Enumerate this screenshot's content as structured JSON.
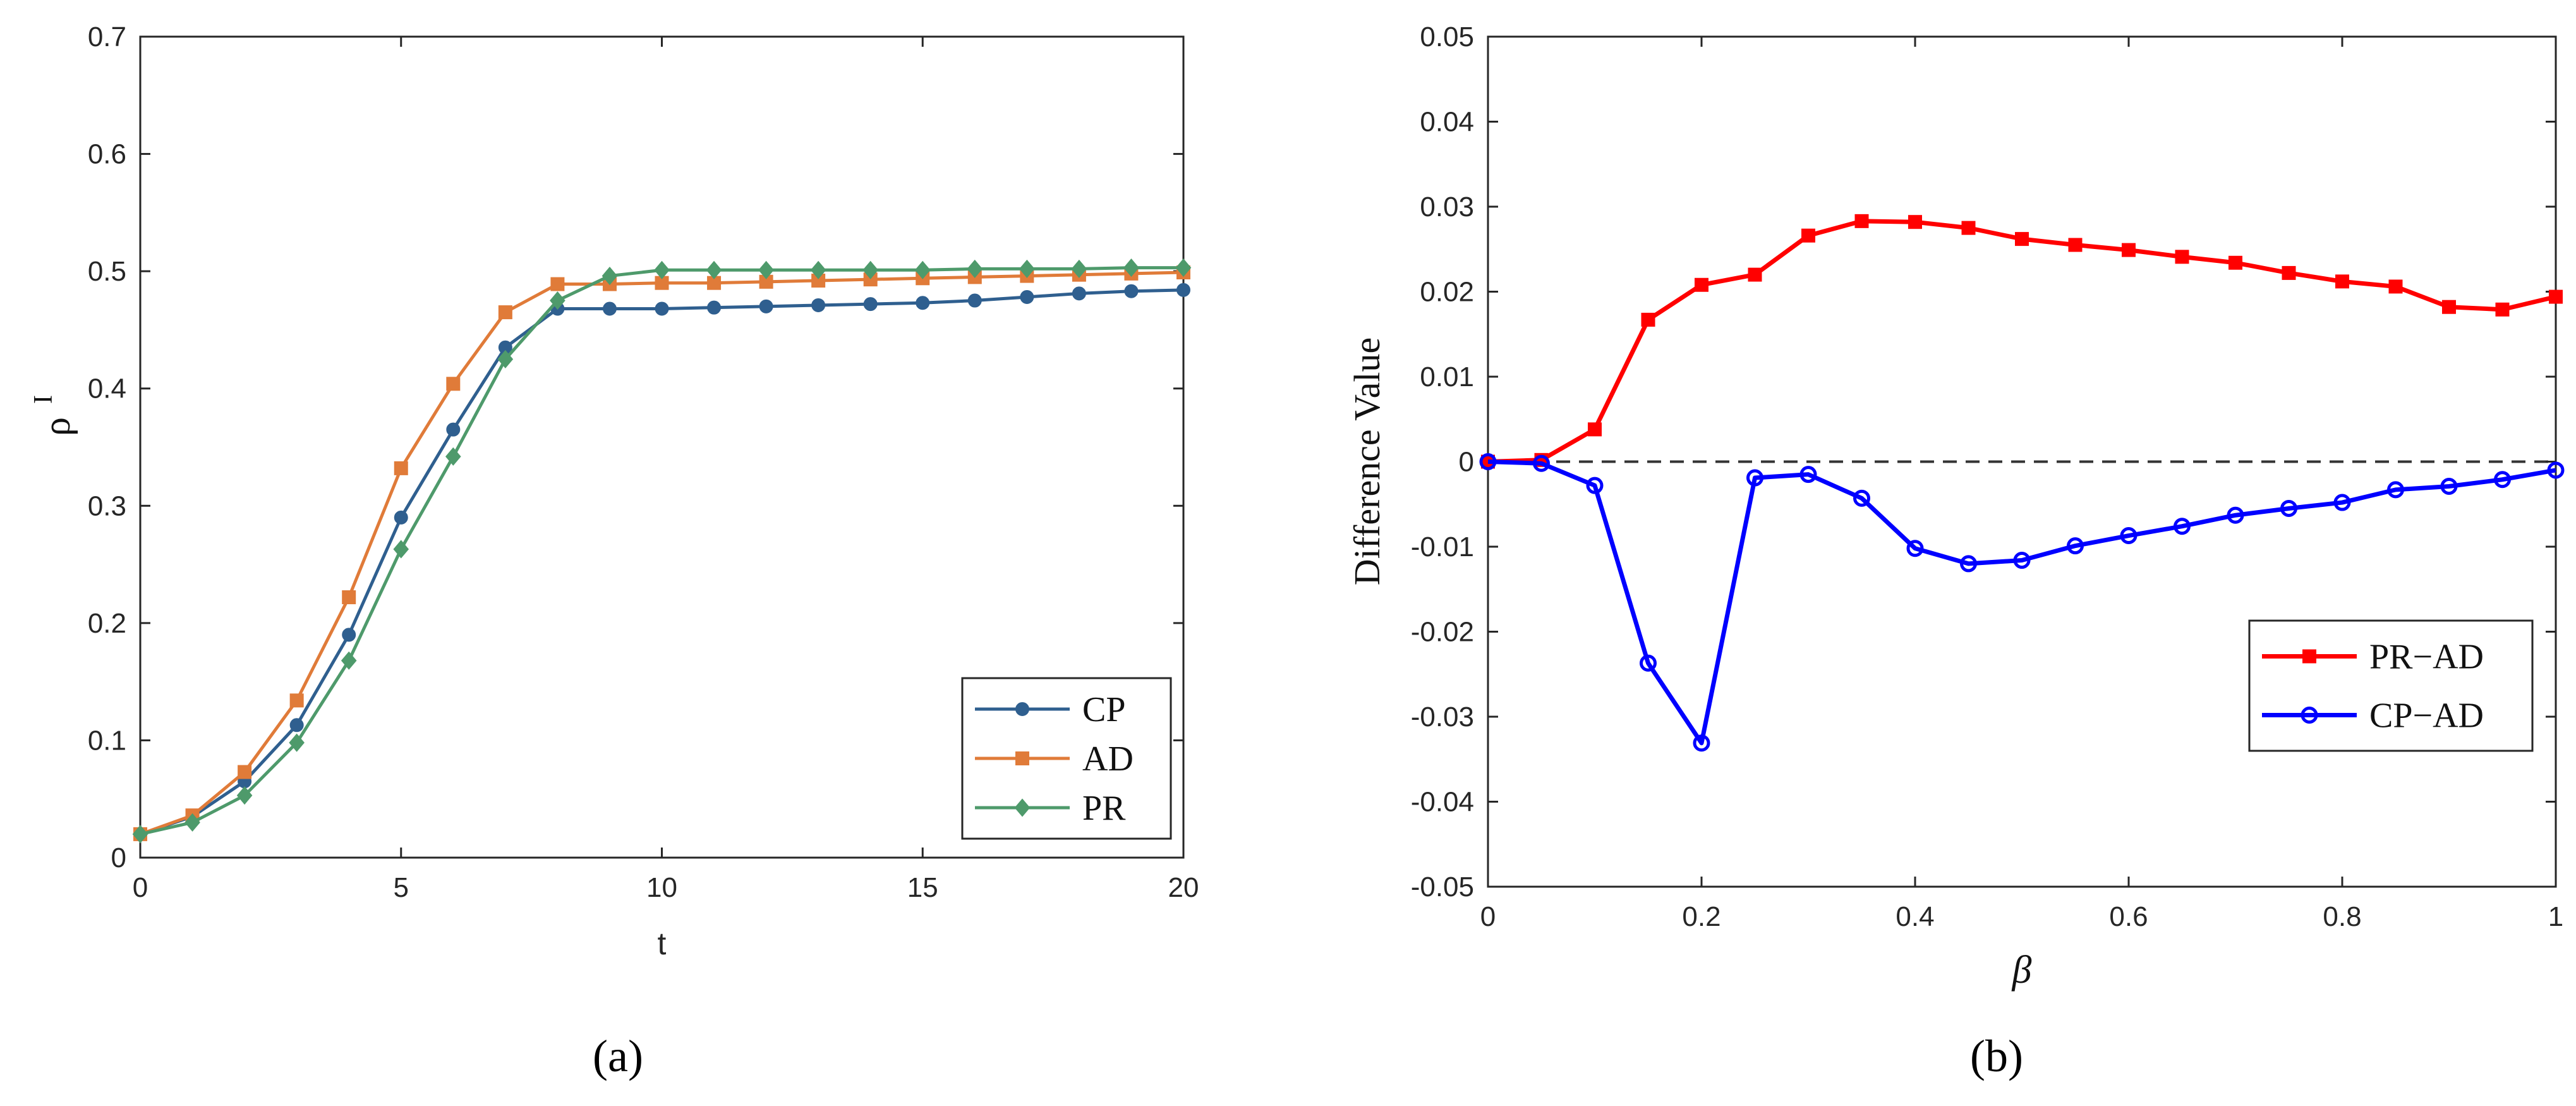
{
  "chart_data": [
    {
      "panel": "(a)",
      "type": "line",
      "xlabel": "t",
      "ylabel": "ρ",
      "ylabel_superscript": "I",
      "xlim": [
        0,
        20
      ],
      "ylim": [
        0,
        0.7
      ],
      "xticks": [
        "0",
        "5",
        "10",
        "15",
        "20"
      ],
      "yticks": [
        "0",
        "0.1",
        "0.2",
        "0.3",
        "0.4",
        "0.5",
        "0.6",
        "0.7"
      ],
      "legend_position": "bottom-right",
      "x": [
        0,
        1,
        2,
        3,
        4,
        5,
        6,
        7,
        8,
        9,
        10,
        11,
        12,
        13,
        14,
        15,
        16,
        17,
        18,
        19,
        20
      ],
      "series": [
        {
          "name": "CP",
          "color": "#2f5f8f",
          "marker": "circle",
          "values": [
            0.02,
            0.035,
            0.065,
            0.113,
            0.19,
            0.29,
            0.365,
            0.435,
            0.468,
            0.468,
            0.468,
            0.469,
            0.47,
            0.471,
            0.472,
            0.473,
            0.475,
            0.478,
            0.481,
            0.483,
            0.484
          ]
        },
        {
          "name": "AD",
          "color": "#e07b39",
          "marker": "square",
          "values": [
            0.02,
            0.036,
            0.073,
            0.134,
            0.222,
            0.332,
            0.404,
            0.465,
            0.489,
            0.489,
            0.49,
            0.49,
            0.491,
            0.492,
            0.493,
            0.494,
            0.495,
            0.496,
            0.497,
            0.498,
            0.499
          ]
        },
        {
          "name": "PR",
          "color": "#4e9a6b",
          "marker": "diamond",
          "values": [
            0.02,
            0.03,
            0.053,
            0.098,
            0.168,
            0.263,
            0.342,
            0.425,
            0.475,
            0.496,
            0.501,
            0.501,
            0.501,
            0.501,
            0.501,
            0.501,
            0.502,
            0.502,
            0.502,
            0.503,
            0.503
          ]
        }
      ]
    },
    {
      "panel": "(b)",
      "type": "line",
      "xlabel": "β",
      "ylabel": "Difference Value",
      "xlim": [
        0,
        1
      ],
      "ylim": [
        -0.05,
        0.05
      ],
      "xticks": [
        "0",
        "0.2",
        "0.4",
        "0.6",
        "0.8",
        "1"
      ],
      "yticks": [
        "-0.05",
        "-0.04",
        "-0.03",
        "-0.02",
        "-0.01",
        "0",
        "0.01",
        "0.02",
        "0.03",
        "0.04",
        "0.05"
      ],
      "reference_line": 0,
      "legend_position": "bottom-right",
      "x": [
        0,
        0.05,
        0.1,
        0.15,
        0.2,
        0.25,
        0.3,
        0.35,
        0.4,
        0.45,
        0.5,
        0.55,
        0.6,
        0.65,
        0.7,
        0.75,
        0.8,
        0.85,
        0.9,
        0.95,
        1
      ],
      "series": [
        {
          "name": "PR−AD",
          "color": "#ff0000",
          "marker": "square",
          "values": [
            0,
            0.0002,
            0.0038,
            0.0167,
            0.0208,
            0.022,
            0.0266,
            0.0283,
            0.0282,
            0.0275,
            0.0262,
            0.0255,
            0.0249,
            0.0241,
            0.0234,
            0.0222,
            0.0212,
            0.0206,
            0.0182,
            0.0179,
            0.0194
          ]
        },
        {
          "name": "CP−AD",
          "color": "#0000ff",
          "marker": "circle",
          "values": [
            0,
            -0.0002,
            -0.0028,
            -0.0237,
            -0.0331,
            -0.0019,
            -0.0015,
            -0.0043,
            -0.0102,
            -0.012,
            -0.0116,
            -0.0099,
            -0.0087,
            -0.0076,
            -0.0063,
            -0.0055,
            -0.0048,
            -0.0033,
            -0.0029,
            -0.0021,
            -0.001
          ]
        }
      ]
    }
  ]
}
